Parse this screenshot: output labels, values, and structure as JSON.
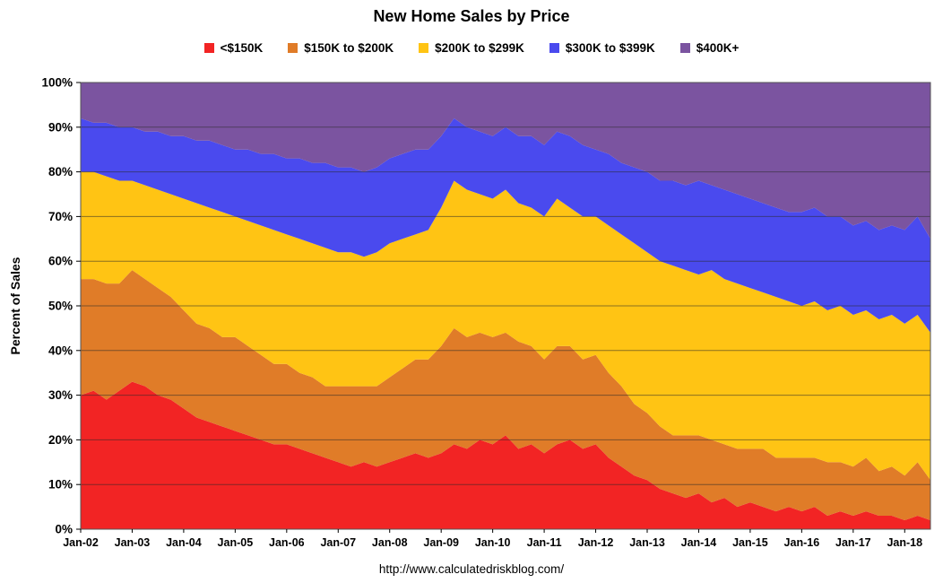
{
  "caption": "http://www.calculatedriskblog.com/",
  "chart_data": {
    "type": "area",
    "stacked": true,
    "normalized_percent": true,
    "title": "New Home Sales by Price",
    "xlabel": "",
    "ylabel": "Percent of Sales",
    "ylim": [
      0,
      100
    ],
    "grid": "horizontal",
    "legend_position": "top",
    "x_start": "Jan-2002",
    "x_end": "Jul-2018",
    "x_interval": "quarterly",
    "ytick_labels": [
      "0%",
      "10%",
      "20%",
      "30%",
      "40%",
      "50%",
      "60%",
      "70%",
      "80%",
      "90%",
      "100%"
    ],
    "ytick_values": [
      0,
      10,
      20,
      30,
      40,
      50,
      60,
      70,
      80,
      90,
      100
    ],
    "xtick_labels": [
      "Jan-02",
      "Jan-03",
      "Jan-04",
      "Jan-05",
      "Jan-06",
      "Jan-07",
      "Jan-08",
      "Jan-09",
      "Jan-10",
      "Jan-11",
      "Jan-12",
      "Jan-13",
      "Jan-14",
      "Jan-15",
      "Jan-16",
      "Jan-17",
      "Jan-18"
    ],
    "xtick_positions": [
      0,
      4,
      8,
      12,
      16,
      20,
      24,
      28,
      32,
      36,
      40,
      44,
      48,
      52,
      56,
      60,
      64
    ],
    "series": [
      {
        "name": "<$150K",
        "color": "#F22424",
        "values": [
          30,
          31,
          29,
          31,
          33,
          32,
          30,
          29,
          27,
          25,
          24,
          23,
          22,
          21,
          20,
          19,
          19,
          18,
          17,
          16,
          15,
          14,
          15,
          14,
          15,
          16,
          17,
          16,
          17,
          19,
          18,
          20,
          19,
          21,
          18,
          19,
          17,
          19,
          20,
          18,
          19,
          16,
          14,
          12,
          11,
          9,
          8,
          7,
          8,
          6,
          7,
          5,
          6,
          5,
          4,
          5,
          4,
          5,
          3,
          4,
          3,
          4,
          3,
          3,
          2,
          3,
          2
        ]
      },
      {
        "name": "$150K to $200K",
        "color": "#E07C28",
        "values": [
          26,
          25,
          26,
          24,
          25,
          24,
          24,
          23,
          22,
          21,
          21,
          20,
          21,
          20,
          19,
          18,
          18,
          17,
          17,
          16,
          17,
          18,
          17,
          18,
          19,
          20,
          21,
          22,
          24,
          26,
          25,
          24,
          24,
          23,
          24,
          22,
          21,
          22,
          21,
          20,
          20,
          19,
          18,
          16,
          15,
          14,
          13,
          14,
          13,
          14,
          12,
          13,
          12,
          13,
          12,
          11,
          12,
          11,
          12,
          11,
          11,
          12,
          10,
          11,
          10,
          12,
          9
        ]
      },
      {
        "name": "$200K to $299K",
        "color": "#FFC414",
        "values": [
          24,
          24,
          24,
          23,
          20,
          21,
          22,
          23,
          25,
          27,
          27,
          28,
          27,
          28,
          29,
          30,
          29,
          30,
          30,
          31,
          30,
          30,
          29,
          30,
          30,
          29,
          28,
          29,
          31,
          33,
          33,
          31,
          31,
          32,
          31,
          31,
          32,
          33,
          31,
          32,
          31,
          33,
          34,
          36,
          36,
          37,
          38,
          37,
          36,
          38,
          37,
          37,
          36,
          35,
          36,
          35,
          34,
          35,
          34,
          35,
          34,
          33,
          34,
          34,
          34,
          33,
          33
        ]
      },
      {
        "name": "$300K to $399K",
        "color": "#4A4AEE",
        "values": [
          12,
          11,
          12,
          12,
          12,
          12,
          13,
          13,
          14,
          14,
          15,
          15,
          15,
          16,
          16,
          17,
          17,
          18,
          18,
          19,
          19,
          19,
          19,
          19,
          19,
          19,
          19,
          18,
          16,
          14,
          14,
          14,
          14,
          14,
          15,
          16,
          16,
          15,
          16,
          16,
          15,
          16,
          16,
          17,
          18,
          18,
          19,
          19,
          21,
          19,
          20,
          20,
          20,
          20,
          20,
          20,
          21,
          21,
          21,
          20,
          20,
          20,
          20,
          20,
          21,
          22,
          21
        ]
      },
      {
        "name": "$400K+",
        "color": "#7B54A0",
        "values": [
          8,
          9,
          9,
          10,
          10,
          11,
          11,
          12,
          12,
          13,
          13,
          14,
          15,
          15,
          16,
          16,
          17,
          17,
          18,
          18,
          19,
          19,
          20,
          19,
          17,
          16,
          15,
          15,
          12,
          8,
          10,
          11,
          12,
          10,
          12,
          12,
          14,
          11,
          12,
          14,
          15,
          16,
          18,
          19,
          20,
          22,
          22,
          23,
          22,
          23,
          24,
          25,
          26,
          27,
          28,
          29,
          29,
          28,
          30,
          30,
          32,
          31,
          33,
          32,
          33,
          30,
          35
        ]
      }
    ]
  }
}
